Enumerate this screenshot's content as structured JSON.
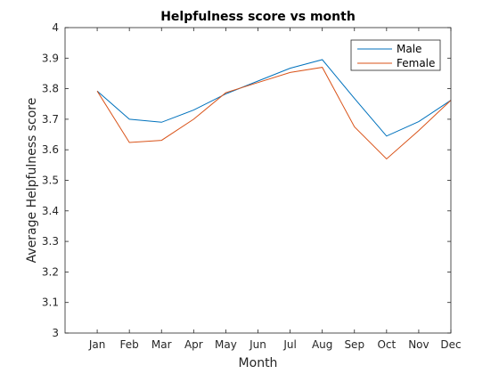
{
  "chart_data": {
    "type": "line",
    "title": "Helpfulness score vs month",
    "xlabel": "Month",
    "ylabel": "Average Helpfulness score",
    "categories": [
      "Jan",
      "Feb",
      "Mar",
      "Apr",
      "May",
      "Jun",
      "Jul",
      "Aug",
      "Sep",
      "Oct",
      "Nov",
      "Dec"
    ],
    "ylim": [
      3,
      4
    ],
    "yticks": [
      "3",
      "3.1",
      "3.2",
      "3.3",
      "3.4",
      "3.5",
      "3.6",
      "3.7",
      "3.8",
      "3.9",
      "4"
    ],
    "grid": false,
    "legend_position": "top-right",
    "series": [
      {
        "name": "Male",
        "color": "#0072BD",
        "values": [
          3.792,
          3.7,
          3.69,
          3.73,
          3.783,
          3.825,
          3.867,
          3.895,
          3.768,
          3.645,
          3.692,
          3.762
        ]
      },
      {
        "name": "Female",
        "color": "#D95319",
        "values": [
          3.792,
          3.624,
          3.631,
          3.7,
          3.787,
          3.82,
          3.853,
          3.87,
          3.675,
          3.57,
          3.663,
          3.762
        ]
      }
    ]
  }
}
